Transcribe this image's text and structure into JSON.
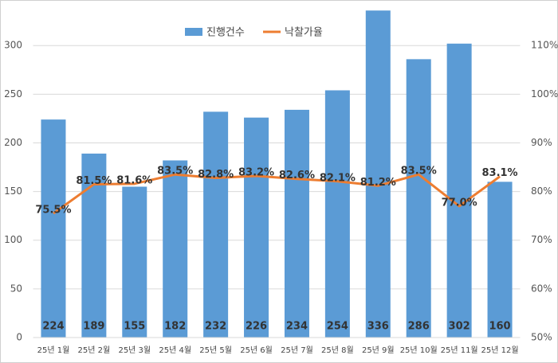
{
  "chart_data": {
    "type": "bar-line",
    "categories": [
      "25년 1월",
      "25년 2월",
      "25년 3월",
      "25년 4월",
      "25년 5월",
      "25년 6월",
      "25년 7월",
      "25년 8월",
      "25년 9월",
      "25년 10월",
      "25년 11월",
      "25년 12월"
    ],
    "series": [
      {
        "name": "진행건수",
        "type": "bar",
        "color": "#5b9bd5",
        "values": [
          224,
          189,
          155,
          182,
          232,
          226,
          234,
          254,
          336,
          286,
          302,
          160
        ]
      },
      {
        "name": "낙찰가율",
        "type": "line",
        "axis": "y2",
        "color": "#ed7d31",
        "values": [
          75.5,
          81.5,
          81.6,
          83.5,
          82.8,
          83.2,
          82.6,
          82.1,
          81.2,
          83.5,
          77,
          83.1
        ],
        "value_labels": [
          "75.5%",
          "81.5%",
          "81.6%",
          "83.5%",
          "82.8%",
          "83.2%",
          "82.6%",
          "82.1%",
          "81.2%",
          "83.5%",
          "77.0%",
          "83.1%"
        ]
      }
    ],
    "ylim": [
      0,
      337
    ],
    "yticks": [
      0,
      50,
      100,
      150,
      200,
      250,
      300
    ],
    "y2lim": [
      50,
      117.4
    ],
    "y2ticks": [
      {
        "value": 50,
        "label": "50%"
      },
      {
        "value": 60,
        "label": "60%"
      },
      {
        "value": 70,
        "label": "70%"
      },
      {
        "value": 80,
        "label": "80%"
      },
      {
        "value": 90,
        "label": "90%"
      },
      {
        "value": 100,
        "label": "100%"
      },
      {
        "value": 110,
        "label": "110%"
      }
    ],
    "grid": true,
    "legend": "top"
  }
}
